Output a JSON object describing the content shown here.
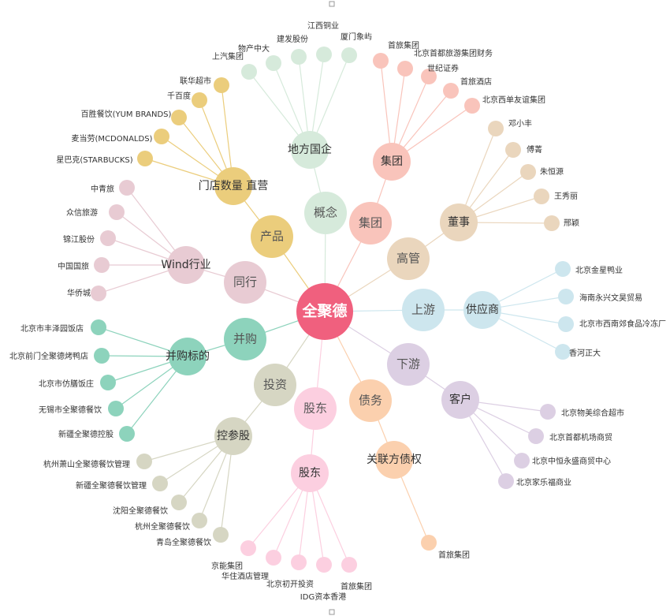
{
  "center": {
    "label": "全聚德"
  },
  "branches": [
    {
      "label": "概念",
      "group": {
        "label": "地方国企",
        "leaves": [
          "上汽集团",
          "物产中大",
          "建发股份",
          "江西铜业",
          "厦门象屿"
        ]
      }
    },
    {
      "label": "集团",
      "group": {
        "label": "集团",
        "leaves": [
          "首旅集团",
          "北京首都旅游集团财务",
          "世纪证券",
          "首旅酒店",
          "北京西单友谊集团"
        ]
      }
    },
    {
      "label": "高管",
      "group": {
        "label": "董事",
        "leaves": [
          "邓小丰",
          "傅菁",
          "朱恒源",
          "王秀丽",
          "邢颖"
        ]
      }
    },
    {
      "label": "上游",
      "group": {
        "label": "供应商",
        "leaves": [
          "北京金星鸭业",
          "海南永兴文昊贸易",
          "北京市西南郊食品冷冻厂",
          "香河正大"
        ]
      }
    },
    {
      "label": "下游",
      "group": {
        "label": "客户",
        "leaves": [
          "北京物美综合超市",
          "北京首都机场商贸",
          "北京中恒永盛商贸中心",
          "北京家乐福商业"
        ]
      }
    },
    {
      "label": "债务",
      "group": {
        "label": "关联方债权",
        "leaves": [
          "首旅集团"
        ]
      }
    },
    {
      "label": "股东",
      "group": {
        "label": "股东",
        "leaves": [
          "京能集团",
          "华住酒店管理",
          "北京初开投资",
          "IDG资本香港",
          "首旅集团"
        ]
      }
    },
    {
      "label": "投资",
      "group": {
        "label": "控参股",
        "leaves": [
          "杭州萧山全聚德餐饮管理",
          "新疆全聚德餐饮管理",
          "沈阳全聚德餐饮",
          "杭州全聚德餐饮",
          "青岛全聚德餐饮"
        ]
      }
    },
    {
      "label": "并购",
      "group": {
        "label": "并购标的",
        "leaves": [
          "北京市丰泽园饭店",
          "北京前门全聚德烤鸭店",
          "北京市仿膳饭庄",
          "无锡市全聚德餐饮",
          "新疆全聚德控股"
        ]
      }
    },
    {
      "label": "同行",
      "group": {
        "label": "Wind行业",
        "leaves": [
          "中青旅",
          "众信旅游",
          "锦江股份",
          "中国国旅",
          "华侨城"
        ]
      }
    },
    {
      "label": "产品",
      "group": {
        "label": "门店数量 直营",
        "leaves": [
          "联华超市",
          "千百度",
          "百胜餐饮(YUM BRANDS)",
          "麦当劳(MCDONALDS)",
          "星巴克(STARBUCKS)"
        ]
      }
    }
  ]
}
